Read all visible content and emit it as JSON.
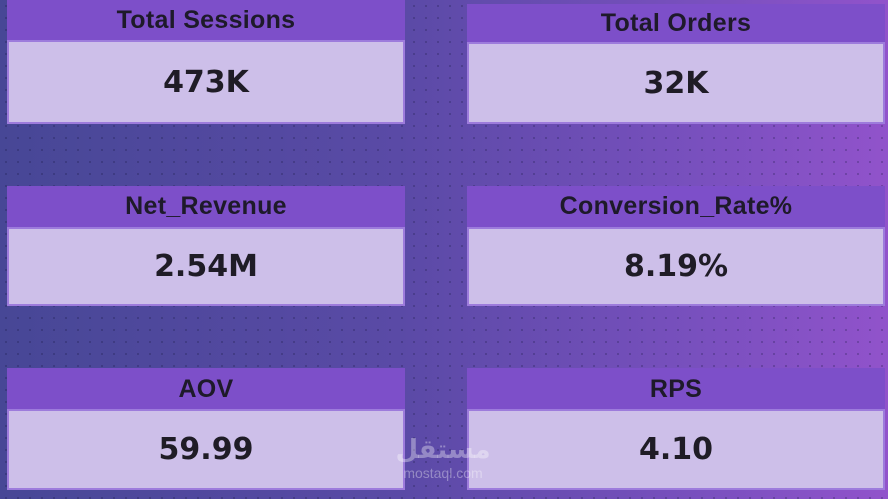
{
  "cards": [
    {
      "title": "Total Sessions",
      "value": "473K"
    },
    {
      "title": "Total Orders",
      "value": "32K"
    },
    {
      "title": "Net_Revenue",
      "value": "2.54M"
    },
    {
      "title": "Conversion_Rate%",
      "value": "8.19%"
    },
    {
      "title": "AOV",
      "value": "59.99"
    },
    {
      "title": "RPS",
      "value": "4.10"
    }
  ],
  "watermark": {
    "arabic": "مستقل",
    "site": "mostaql.com"
  }
}
